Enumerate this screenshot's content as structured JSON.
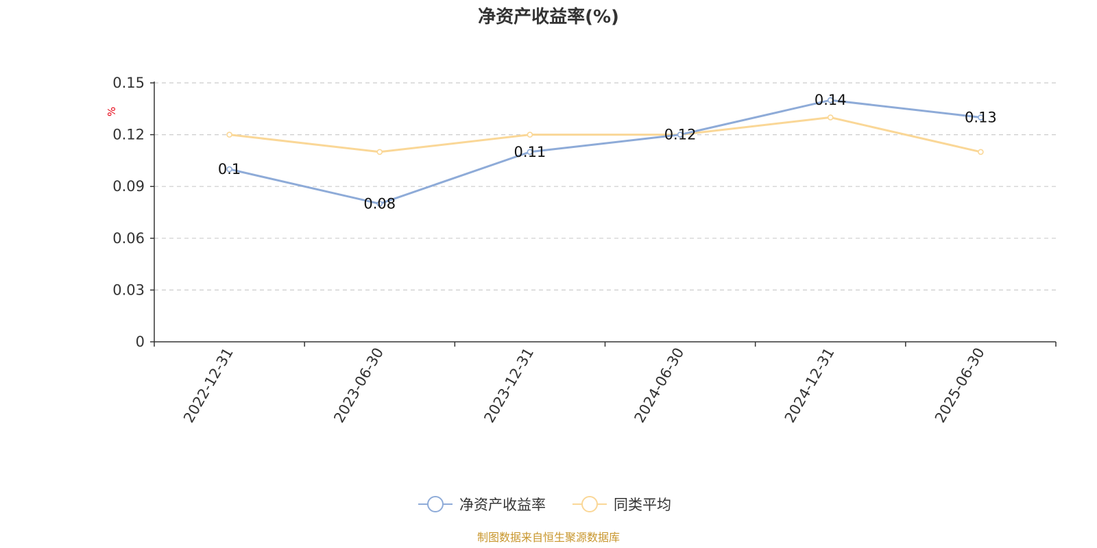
{
  "chart_data": {
    "type": "line",
    "title": "净资产收益率(%)",
    "ylabel": "%",
    "xlabel": "",
    "categories": [
      "2022-12-31",
      "2023-06-30",
      "2023-12-31",
      "2024-06-30",
      "2024-12-31",
      "2025-06-30"
    ],
    "ylim": [
      0,
      0.15
    ],
    "yticks": [
      "0",
      "0.03",
      "0.06",
      "0.09",
      "0.12",
      "0.15"
    ],
    "grid": true,
    "legend_position": "bottom",
    "series": [
      {
        "name": "净资产收益率",
        "color": "#8eabd8",
        "values": [
          0.1,
          0.08,
          0.11,
          0.12,
          0.14,
          0.13
        ],
        "labels": [
          "0.1",
          "0.08",
          "0.11",
          "0.12",
          "0.14",
          "0.13"
        ]
      },
      {
        "name": "同类平均",
        "color": "#fad797",
        "values": [
          0.12,
          0.11,
          0.12,
          0.12,
          0.13,
          0.11
        ]
      }
    ]
  },
  "source_text": "制图数据来自恒生聚源数据库"
}
